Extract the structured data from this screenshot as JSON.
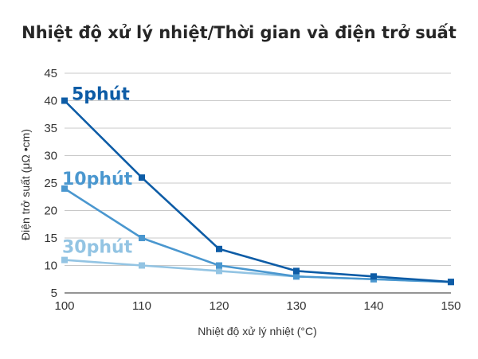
{
  "chart_data": {
    "type": "line",
    "title": "Nhiệt độ xử lý nhiệt/Thời gian và điện trở suất",
    "xlabel": "Nhiệt độ xử lý nhiệt (°C)",
    "ylabel": "Điện trở suất (μΩ •cm)",
    "x": [
      100,
      110,
      120,
      130,
      140,
      150
    ],
    "xlim": [
      100,
      150
    ],
    "ylim": [
      5,
      45
    ],
    "yticks": [
      5,
      10,
      15,
      20,
      25,
      30,
      35,
      40,
      45
    ],
    "grid": "horizontal",
    "series": [
      {
        "name": "5phút",
        "color": "#0d5ca6",
        "values": [
          40,
          26,
          13,
          9,
          8,
          7
        ]
      },
      {
        "name": "10phút",
        "color": "#4a97cf",
        "values": [
          24,
          15,
          10,
          8,
          7.5,
          7
        ]
      },
      {
        "name": "30phút",
        "color": "#93c4e3",
        "values": [
          11,
          10,
          9,
          8,
          7.5,
          7
        ]
      }
    ]
  }
}
